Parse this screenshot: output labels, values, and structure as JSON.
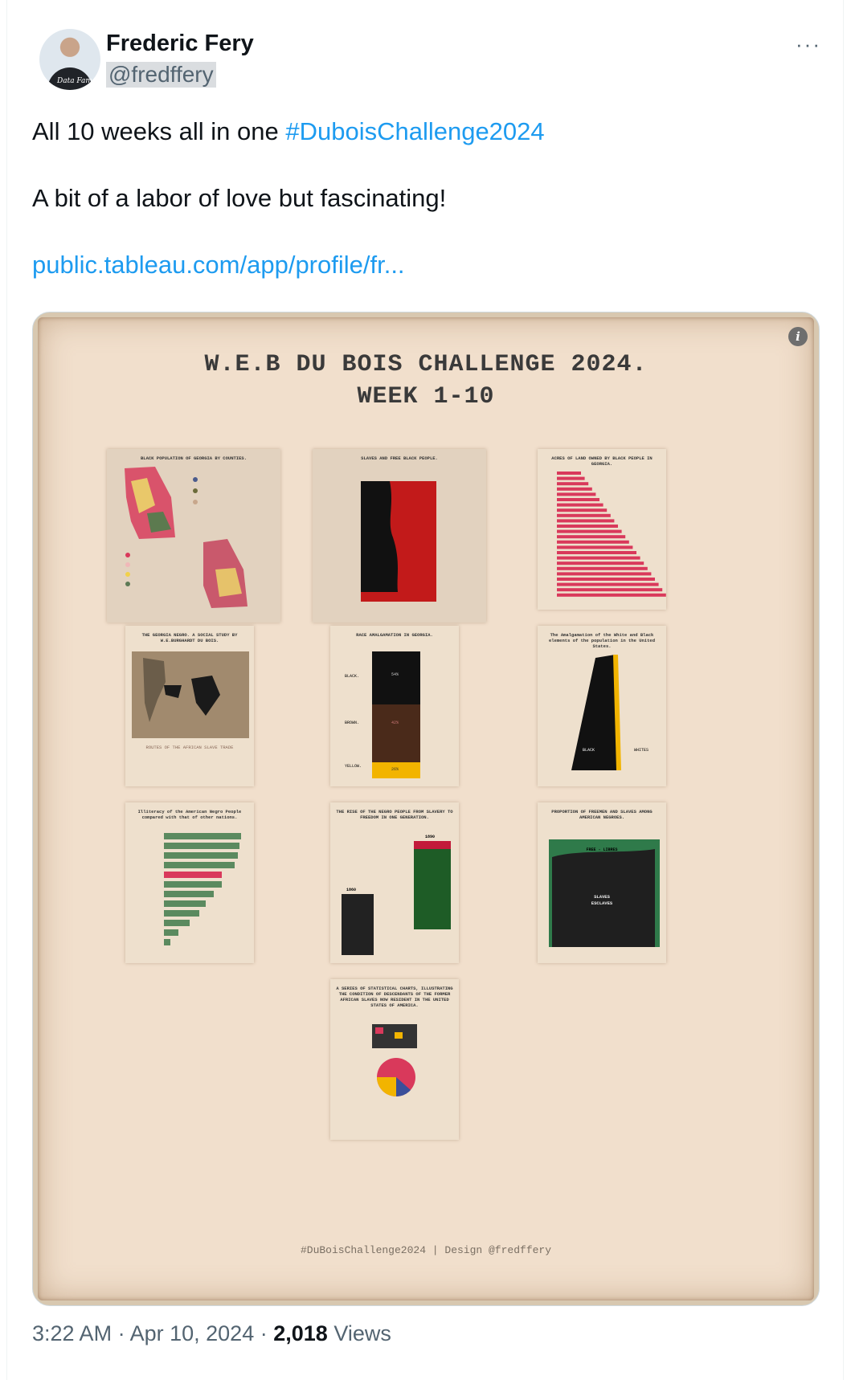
{
  "author": {
    "name": "Frederic Fery",
    "handle": "@fredffery"
  },
  "more_label": "···",
  "tweet": {
    "line1_text": "All 10 weeks all in one ",
    "hashtag": "#DuboisChallenge2024",
    "line2": "A bit of a labor of love  but fascinating!",
    "link": "public.tableau.com/app/profile/fr..."
  },
  "image": {
    "title_line1": "W.E.B DU BOIS CHALLENGE 2024.",
    "title_line2": "WEEK 1-10",
    "credit": "#DuBoisChallenge2024 | Design @fredffery",
    "info_icon": "info-icon",
    "panels": [
      {
        "title": "BLACK POPULATION OF GEORGIA BY COUNTIES.",
        "bg": "#e2d2bf"
      },
      {
        "title": "SLAVES AND FREE BLACK PEOPLE.",
        "bg": "#e2d2bf"
      },
      {
        "title": "ACRES OF LAND OWNED BY BLACK PEOPLE IN GEORGIA.",
        "bg": "#f2e6d6"
      },
      {
        "title": "THE GEORGIA NEGRO. A SOCIAL STUDY BY W.E.BURGHARDT DU BOIS.",
        "bg": "#f2e6d6"
      },
      {
        "title": "RACE AMALGAMATION IN GEORGIA.",
        "bg": "#f2e6d6"
      },
      {
        "title": "The Amalgamation of the White and Black elements of the population in the United States.",
        "bg": "#f2e6d6"
      },
      {
        "title": "Illiteracy of the American Negro People compared with that of other nations.",
        "bg": "#f2e6d6"
      },
      {
        "title": "THE RISE OF THE NEGRO PEOPLE FROM SLAVERY TO FREEDOM IN ONE GENERATION.",
        "bg": "#f2e6d6"
      },
      {
        "title": "PROPORTION OF FREEMEN AND SLAVES AMONG AMERICAN NEGROES.",
        "bg": "#f2e6d6"
      },
      {
        "title": "A SERIES OF STATISTICAL CHARTS, ILLUSTRATING THE CONDITION OF DESCENDANTS OF THE FORMER AFRICAN SLAVES NOW RESIDENT IN THE UNITED STATES OF AMERICA.",
        "bg": "#f2e6d6"
      }
    ],
    "labels": {
      "p4_bottom": "ROUTES OF THE AFRICAN SLAVE TRADE",
      "p5_black": "BLACK.",
      "p5_brown": "BROWN.",
      "p5_yellow": "YELLOW.",
      "p5_bv": "54%",
      "p5_br": "42%",
      "p5_yv": "26%",
      "p6_black": "BLACK",
      "p6_whites": "WHITES",
      "p8_1890": "1890",
      "p8_1860": "1860",
      "p9_free": "FREE - LIBRES",
      "p9_slaves": "SLAVES",
      "p9_esclaves": "ESCLAVES"
    }
  },
  "meta": {
    "time": "3:22 AM",
    "date": "Apr 10, 2024",
    "views_count": "2,018",
    "views_label": "Views"
  }
}
